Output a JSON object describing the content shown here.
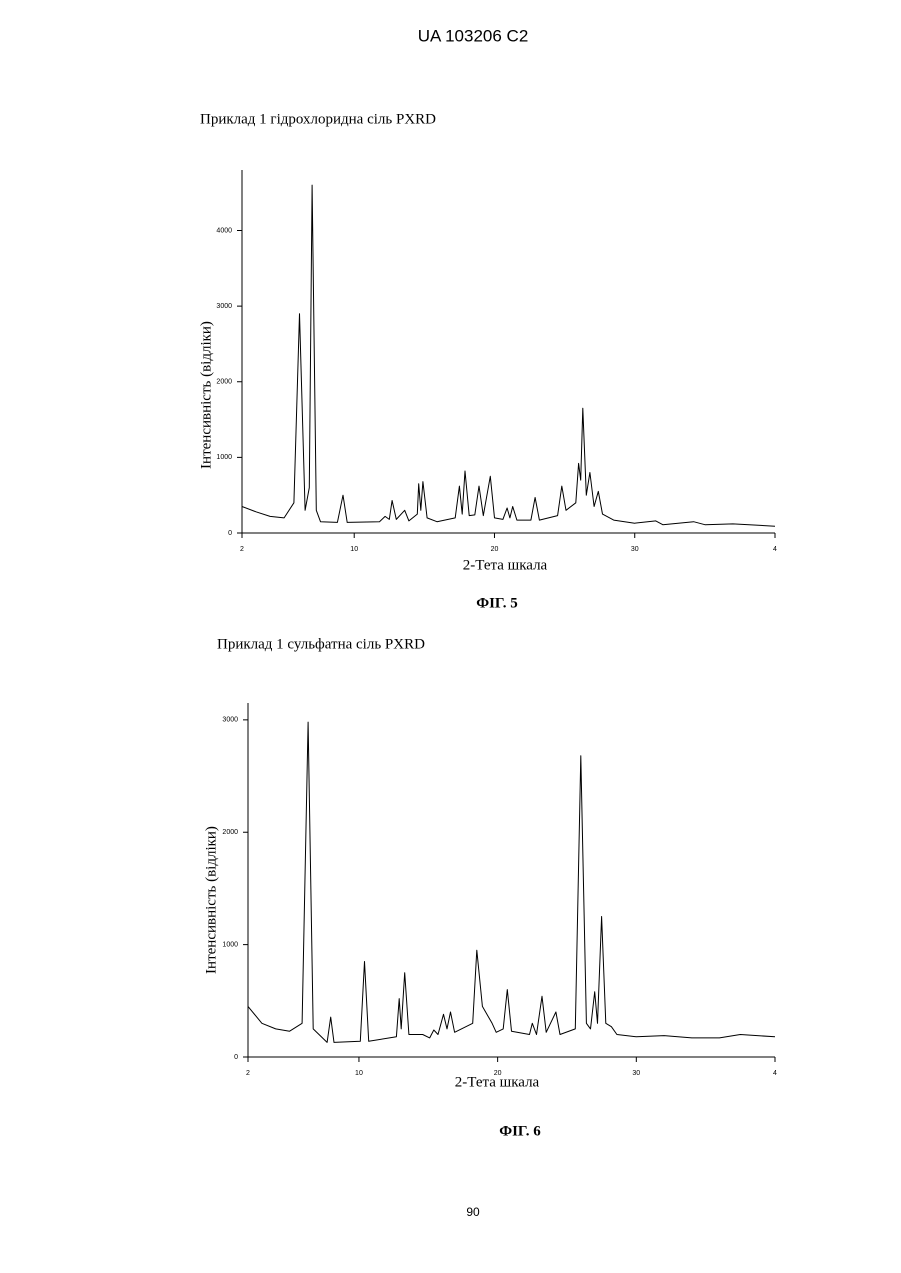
{
  "header": "UA 103206 C2",
  "page_number": "90",
  "chart_data": [
    {
      "type": "line",
      "title": "Приклад 1 гідрохлоридна сіль PXRD",
      "xlabel": "2-Тета шкала",
      "ylabel": "Інтенсивність (відліки)",
      "caption": "ФІГ. 5",
      "color": "#000000",
      "x": [
        2,
        3,
        4,
        5,
        5.7,
        6.1,
        6.5,
        6.8,
        7.0,
        7.3,
        7.6,
        8.8,
        9.2,
        9.5,
        11.8,
        12.2,
        12.5,
        12.7,
        13.0,
        13.6,
        13.9,
        14.5,
        14.6,
        14.75,
        14.9,
        15.2,
        15.9,
        17.2,
        17.5,
        17.7,
        17.9,
        18.2,
        18.6,
        18.9,
        19.2,
        19.7,
        20.0,
        20.6,
        20.9,
        21.1,
        21.3,
        21.6,
        22.6,
        22.9,
        23.2,
        24.5,
        24.8,
        25.1,
        25.8,
        26.0,
        26.15,
        26.3,
        26.55,
        26.8,
        27.1,
        27.4,
        27.7,
        28.5,
        30,
        31.5,
        32,
        34.2,
        35,
        37,
        40
      ],
      "values": [
        350,
        280,
        220,
        200,
        400,
        2900,
        300,
        600,
        4600,
        300,
        150,
        140,
        500,
        140,
        150,
        220,
        180,
        430,
        180,
        300,
        160,
        250,
        650,
        300,
        680,
        200,
        150,
        200,
        620,
        250,
        820,
        230,
        240,
        620,
        230,
        750,
        200,
        180,
        330,
        200,
        350,
        170,
        170,
        470,
        170,
        230,
        620,
        300,
        400,
        920,
        700,
        1650,
        500,
        800,
        350,
        550,
        250,
        170,
        130,
        160,
        110,
        150,
        110,
        120,
        90
      ],
      "xlim": [
        2,
        40
      ],
      "ylim": [
        0,
        4800
      ],
      "xticks": [
        2,
        10,
        20,
        30,
        {
          "value": 40,
          "label": "4"
        }
      ],
      "yticks": [
        0,
        1000,
        2000,
        3000,
        4000
      ]
    },
    {
      "type": "line",
      "title": "Приклад 1 сульфатна сіль PXRD",
      "xlabel": "2-Тета шкала",
      "ylabel": "Інтенсивність (відліки)",
      "caption": "ФІГ. 6",
      "color": "#000000",
      "x": [
        2,
        3,
        4,
        5,
        5.9,
        6.33,
        6.7,
        7.7,
        7.96,
        8.2,
        10.1,
        10.4,
        10.7,
        12.7,
        12.9,
        13.05,
        13.3,
        13.6,
        14.6,
        15.1,
        15.4,
        15.7,
        16.1,
        16.35,
        16.6,
        16.9,
        18.2,
        18.5,
        18.9,
        19.6,
        19.9,
        20.4,
        20.7,
        21.0,
        22.3,
        22.5,
        22.8,
        23.2,
        23.5,
        24.2,
        24.5,
        25.6,
        26.0,
        26.4,
        26.7,
        27.0,
        27.2,
        27.5,
        27.8,
        28.2,
        28.6,
        30,
        32,
        34,
        36,
        37.5,
        40
      ],
      "values": [
        450,
        300,
        250,
        230,
        300,
        2980,
        250,
        130,
        355,
        130,
        140,
        850,
        140,
        180,
        520,
        250,
        750,
        200,
        200,
        170,
        240,
        200,
        380,
        250,
        400,
        220,
        300,
        950,
        450,
        300,
        220,
        250,
        600,
        230,
        200,
        300,
        200,
        540,
        220,
        400,
        200,
        250,
        2680,
        300,
        250,
        580,
        300,
        1250,
        300,
        270,
        200,
        180,
        190,
        170,
        170,
        200,
        180
      ],
      "xlim": [
        2,
        40
      ],
      "ylim": [
        0,
        3150
      ],
      "xticks": [
        2,
        10,
        20,
        30,
        {
          "value": 40,
          "label": "4"
        }
      ],
      "yticks": [
        0,
        1000,
        2000,
        3000
      ]
    }
  ]
}
